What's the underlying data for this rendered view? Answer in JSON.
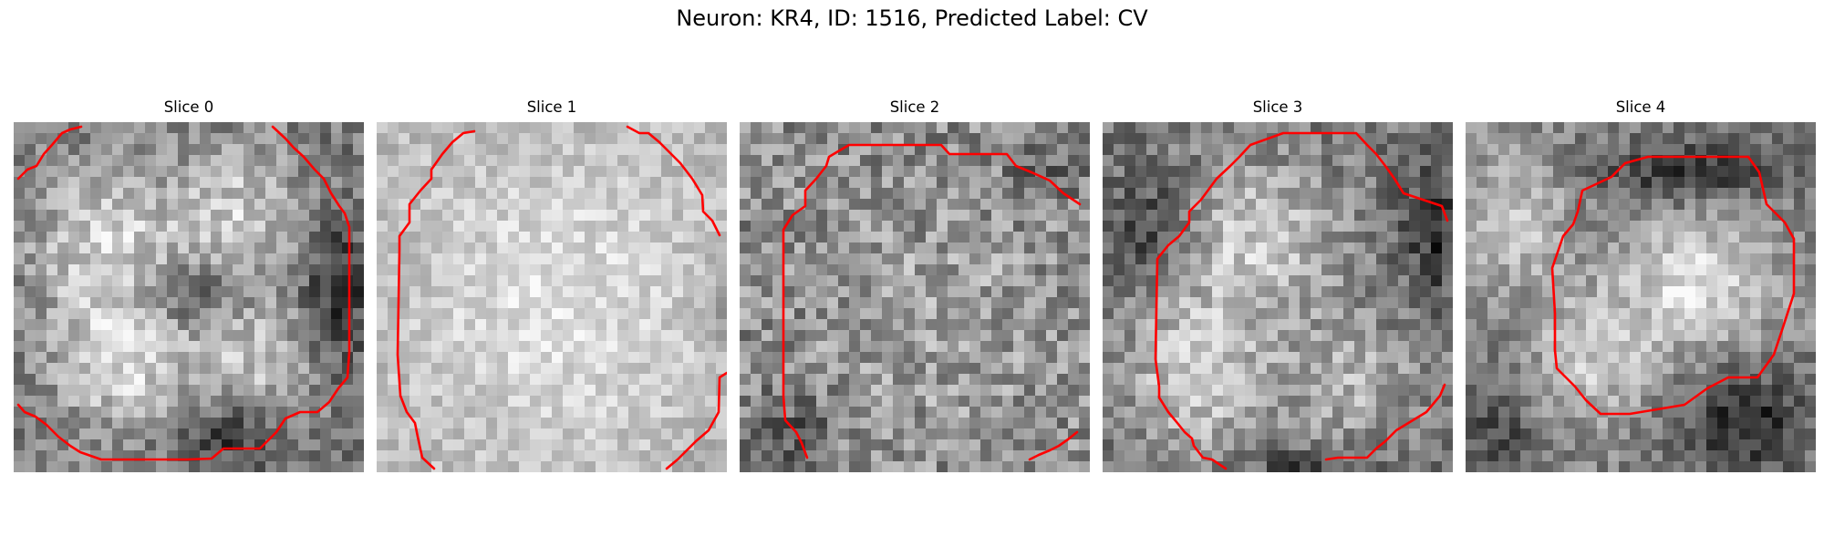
{
  "figure": {
    "title": "Neuron: KR4, ID: 1516, Predicted Label: CV"
  },
  "panels": [
    {
      "title": "Slice 0"
    },
    {
      "title": "Slice 1"
    },
    {
      "title": "Slice 2"
    },
    {
      "title": "Slice 3"
    },
    {
      "title": "Slice 4"
    }
  ],
  "colors": {
    "contour": "#ff0000",
    "colormap": "grayscale"
  }
}
